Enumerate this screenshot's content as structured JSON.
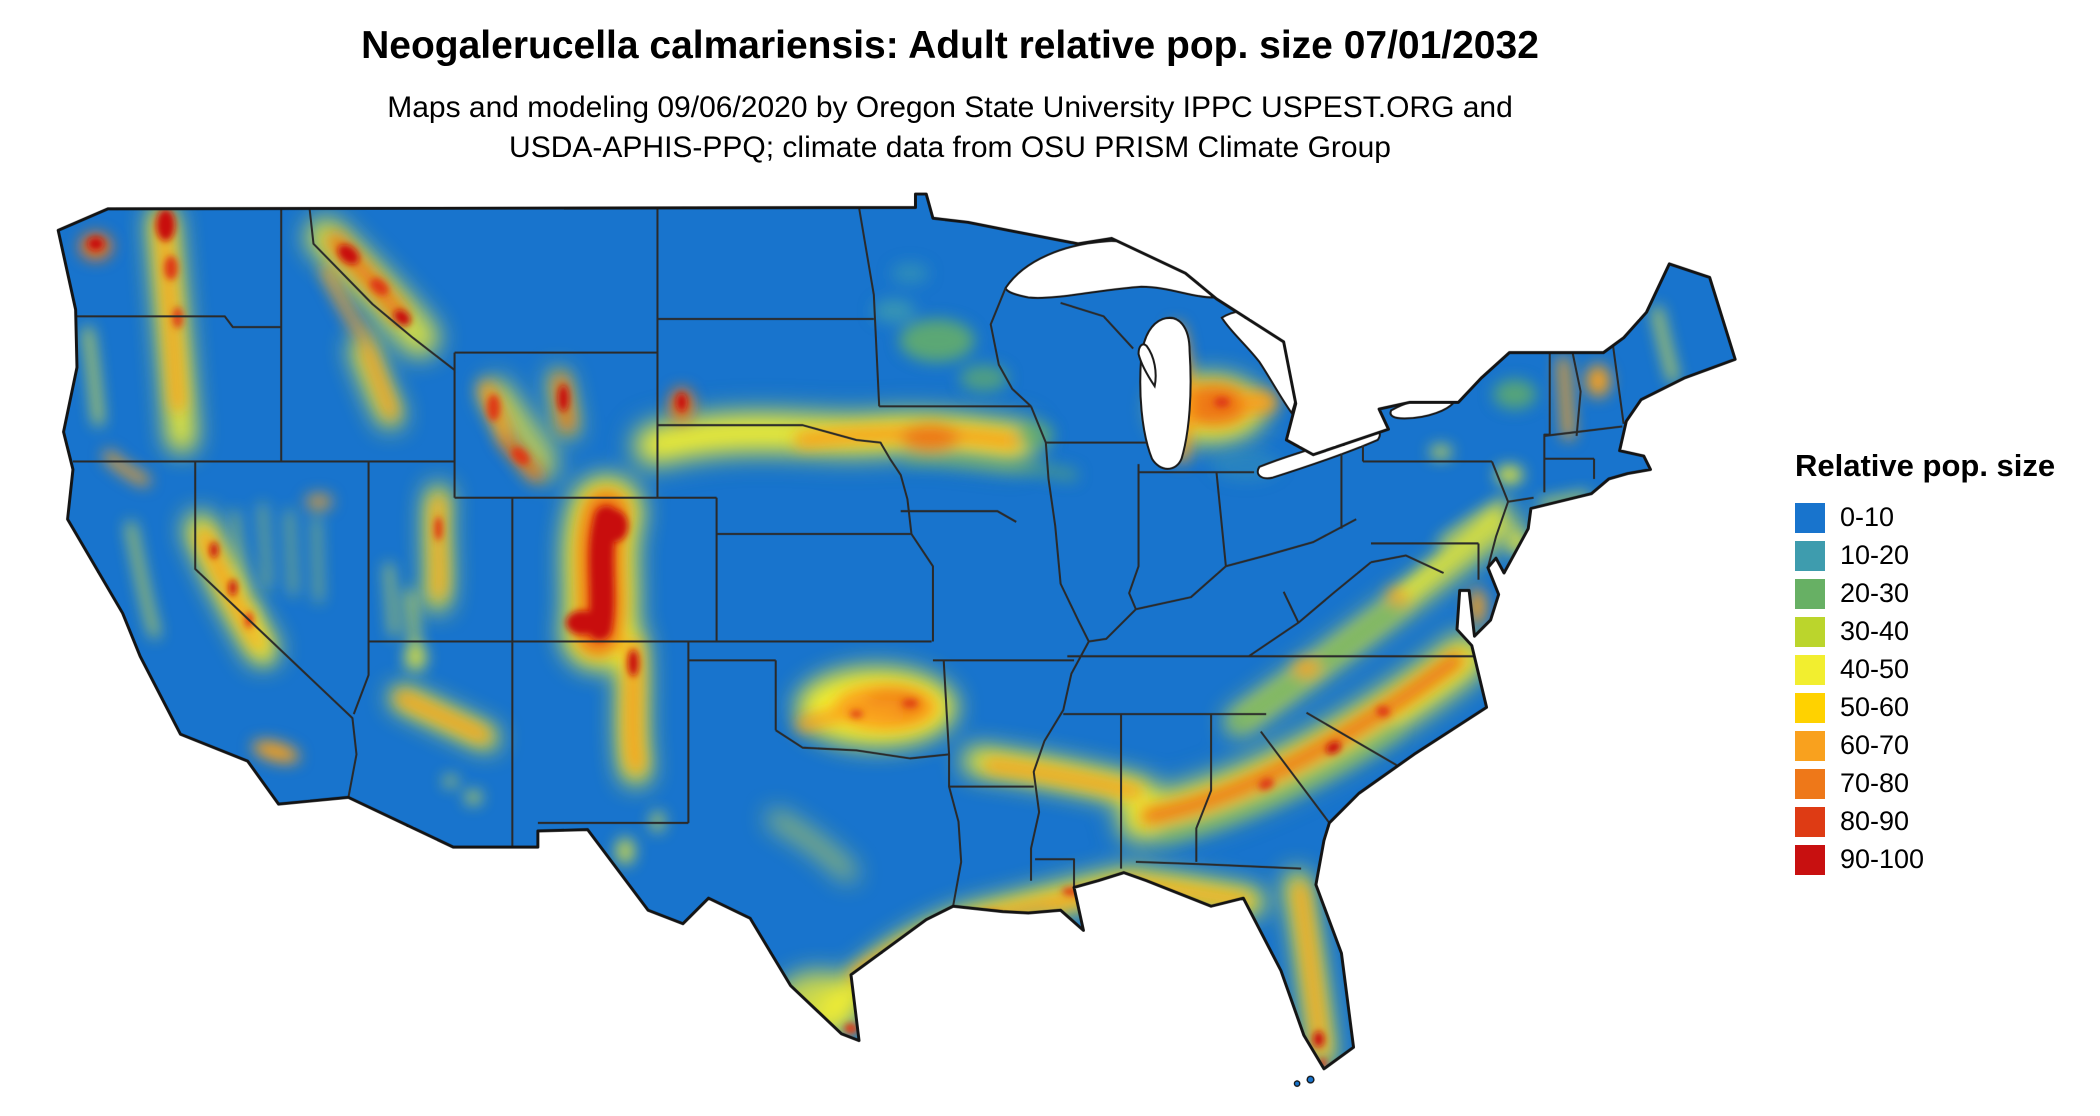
{
  "title": "Neogalerucella calmariensis: Adult relative pop. size 07/01/2032",
  "subtitle_line1": "Maps and modeling 09/06/2020 by Oregon State University IPPC USPEST.ORG and",
  "subtitle_line2": "USDA-APHIS-PPQ; climate data from OSU PRISM Climate Group",
  "legend": {
    "title": "Relative pop. size",
    "classes": [
      {
        "label": "0-10",
        "color": "#1874CD"
      },
      {
        "label": "10-20",
        "color": "#3E9CAE"
      },
      {
        "label": "20-30",
        "color": "#67B064"
      },
      {
        "label": "30-40",
        "color": "#BBD52C"
      },
      {
        "label": "40-50",
        "color": "#F2EE2F"
      },
      {
        "label": "50-60",
        "color": "#FFD200"
      },
      {
        "label": "60-70",
        "color": "#F9A11E"
      },
      {
        "label": "70-80",
        "color": "#EE7819"
      },
      {
        "label": "80-90",
        "color": "#DE3B14"
      },
      {
        "label": "90-100",
        "color": "#C81010"
      }
    ]
  },
  "map": {
    "base_color": "#1874CD",
    "outline_color": "#141414",
    "state_border_color": "#2A2A2A",
    "water_color": "#FFFFFF"
  }
}
